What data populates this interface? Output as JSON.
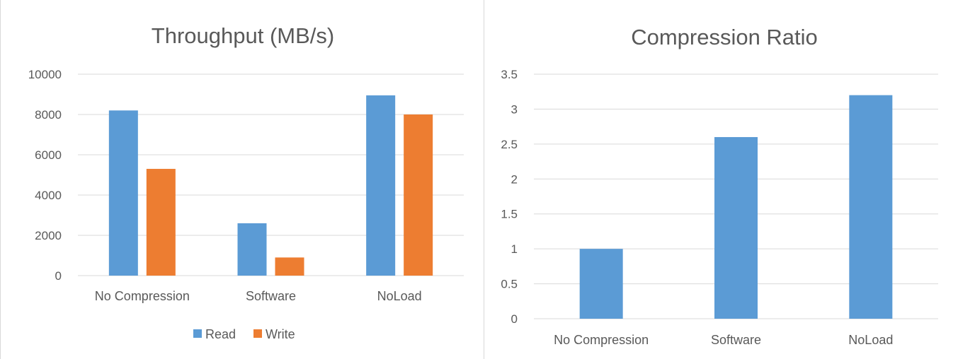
{
  "colors": {
    "read": "#5b9bd5",
    "write": "#ed7d31",
    "grid": "#d9d9d9",
    "text": "#595959"
  },
  "chart_data": [
    {
      "type": "bar",
      "title": "Throughput (MB/s)",
      "categories": [
        "No Compression",
        "Software",
        "NoLoad"
      ],
      "series": [
        {
          "name": "Read",
          "values": [
            8200,
            2600,
            8950
          ]
        },
        {
          "name": "Write",
          "values": [
            5300,
            900,
            8000
          ]
        }
      ],
      "ylim": [
        0,
        10000
      ],
      "yticks": [
        "0",
        "2000",
        "4000",
        "6000",
        "8000",
        "10000"
      ],
      "grid": true,
      "legend": "bottom"
    },
    {
      "type": "bar",
      "title": "Compression Ratio",
      "categories": [
        "No Compression",
        "Software",
        "NoLoad"
      ],
      "series": [
        {
          "values": [
            1,
            2.6,
            3.2
          ]
        }
      ],
      "ylim": [
        0,
        3.5
      ],
      "yticks": [
        "0",
        "0.5",
        "1",
        "1.5",
        "2",
        "2.5",
        "3",
        "3.5"
      ],
      "grid": true,
      "legend": "none"
    }
  ]
}
